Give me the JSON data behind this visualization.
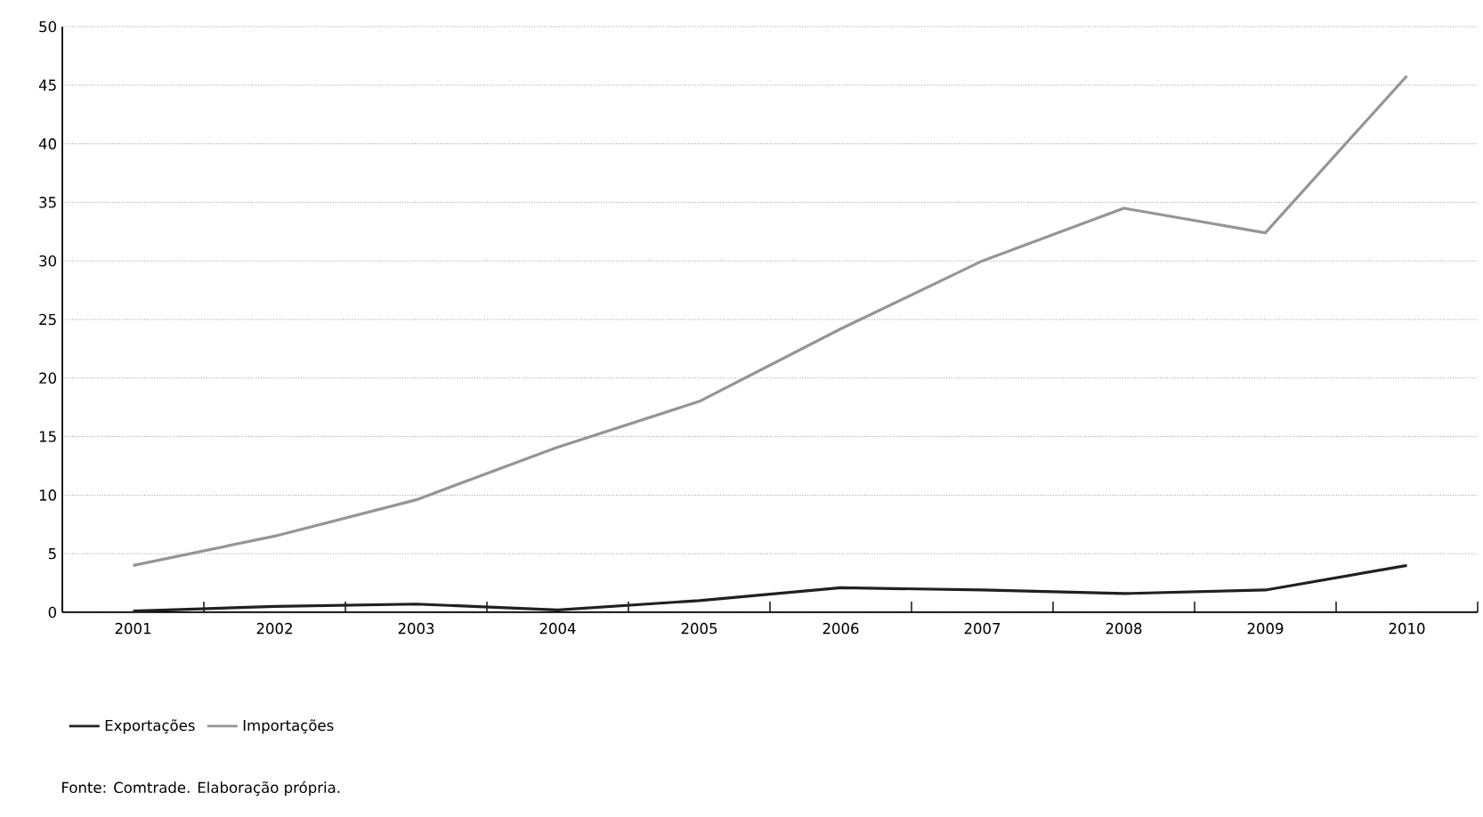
{
  "chart_data": {
    "type": "line",
    "categories": [
      "2001",
      "2002",
      "2003",
      "2004",
      "2005",
      "2006",
      "2007",
      "2008",
      "2009",
      "2010"
    ],
    "series": [
      {
        "name": "Exportações",
        "color": "#231f20",
        "values": [
          0.1,
          0.5,
          0.7,
          0.2,
          1.0,
          2.1,
          1.9,
          1.6,
          1.9,
          4.0
        ]
      },
      {
        "name": "Importações",
        "color": "#939598",
        "values": [
          4.0,
          6.5,
          9.6,
          14.1,
          18.0,
          24.2,
          30.0,
          34.5,
          32.4,
          45.8
        ]
      }
    ],
    "ylim": [
      0,
      50
    ],
    "yticks": [
      0,
      5,
      10,
      15,
      20,
      25,
      30,
      35,
      40,
      45,
      50
    ],
    "grid": "y",
    "legend": "bottom",
    "marker": "none",
    "line_style": "solid",
    "annotations": [
      "Fonte: Comtrade. Elaboração própria."
    ]
  }
}
